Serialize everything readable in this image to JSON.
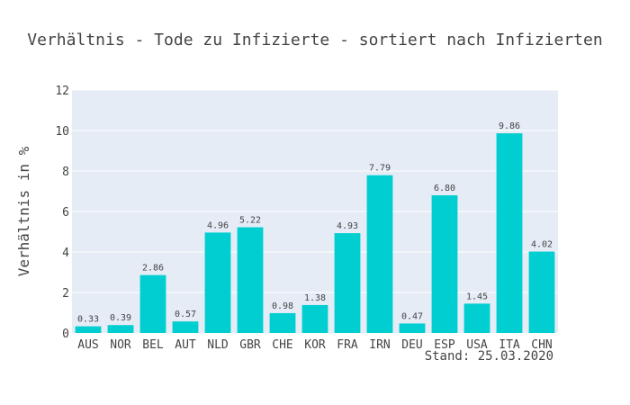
{
  "chart_data": {
    "type": "bar",
    "title": "Verhältnis - Tode zu Infizierte - sortiert nach Infizierten",
    "xlabel": "",
    "ylabel": "Verhältnis in %",
    "categories": [
      "AUS",
      "NOR",
      "BEL",
      "AUT",
      "NLD",
      "GBR",
      "CHE",
      "KOR",
      "FRA",
      "IRN",
      "DEU",
      "ESP",
      "USA",
      "ITA",
      "CHN"
    ],
    "values": [
      0.33,
      0.39,
      2.86,
      0.57,
      4.96,
      5.22,
      0.98,
      1.38,
      4.93,
      7.79,
      0.47,
      6.8,
      1.45,
      9.86,
      4.02
    ],
    "value_labels": [
      "0.33",
      "0.39",
      "2.86",
      "0.57",
      "4.96",
      "5.22",
      "0.98",
      "1.38",
      "4.93",
      "7.79",
      "0.47",
      "6.80",
      "1.45",
      "9.86",
      "4.02"
    ],
    "y_ticks": [
      "0",
      "2",
      "4",
      "6",
      "8",
      "10",
      "12"
    ],
    "ylim": [
      0,
      12
    ],
    "grid": true,
    "bar_color": "#00ced1",
    "plot_background": "#e5ecf6",
    "annotation": "Stand: 25.03.2020"
  }
}
